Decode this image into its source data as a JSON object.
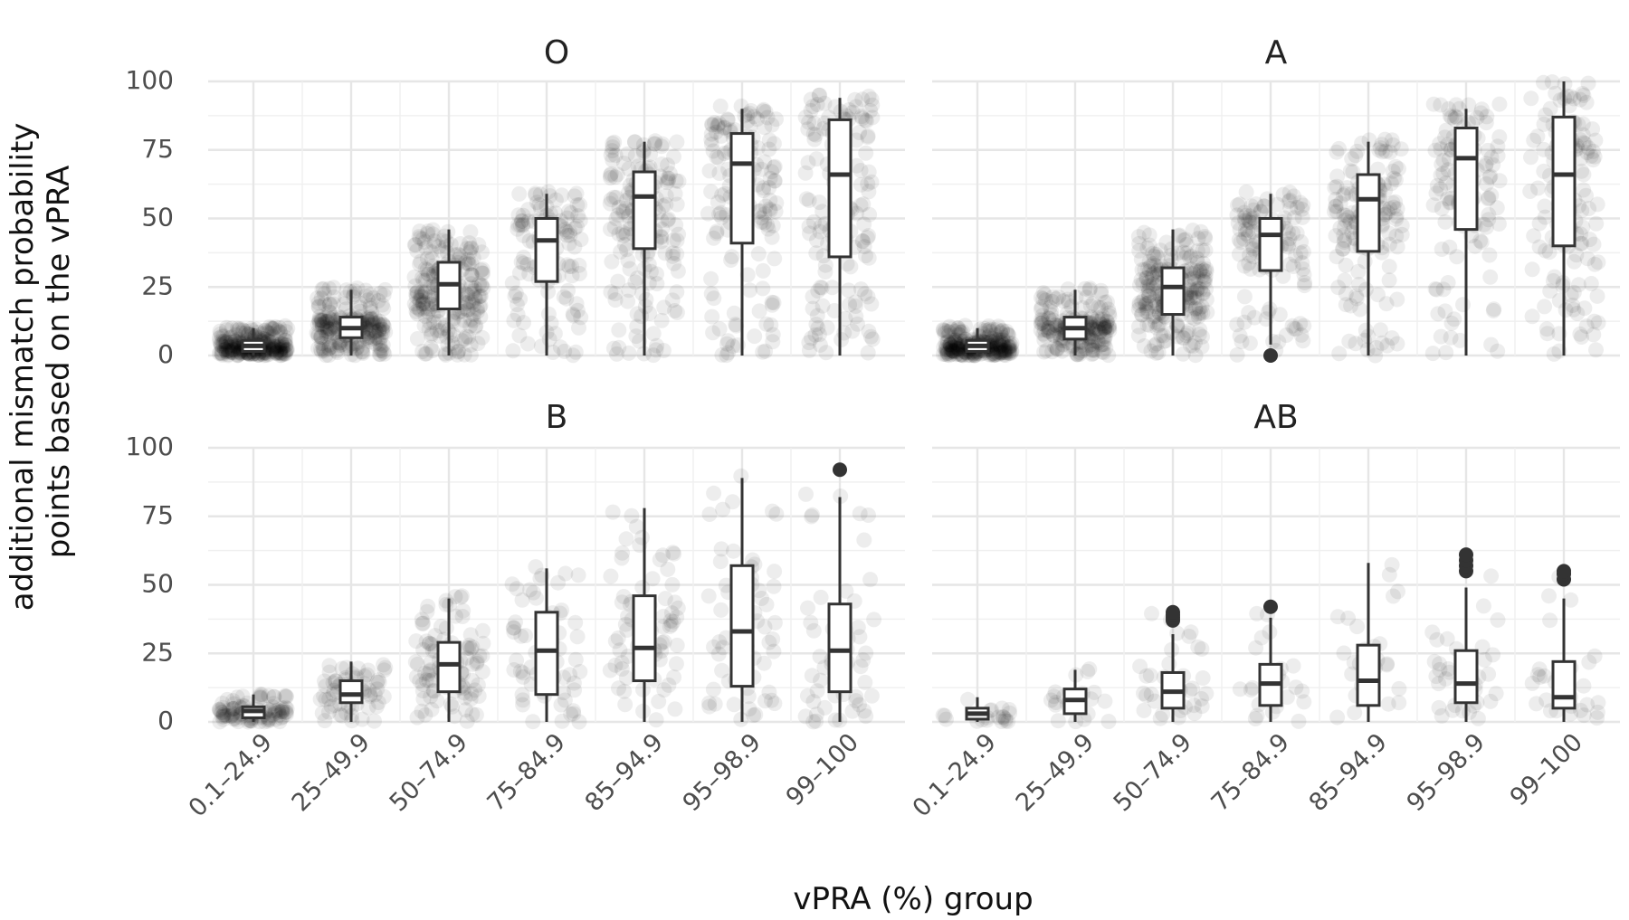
{
  "chart_data": {
    "type": "boxplot_jitter",
    "xlabel": "vPRA (%) group",
    "ylabel": "additional mismatch probability points based on the vPRA",
    "ylabel_lines": [
      "additional mismatch probability",
      "points based on the vPRA"
    ],
    "categories": [
      "0.1–24.9",
      "25–49.9",
      "50–74.9",
      "75–84.9",
      "85–94.9",
      "95–98.9",
      "99–100"
    ],
    "ylim": [
      0,
      100
    ],
    "yticks": [
      0,
      25,
      50,
      75,
      100
    ],
    "grid": true,
    "facets": [
      {
        "name": "O",
        "boxes": [
          {
            "min": 0,
            "q1": 1.5,
            "median": 3.5,
            "q3": 5.5,
            "max": 10,
            "outliers": [],
            "spread": [
              0,
              11
            ],
            "density": 260
          },
          {
            "min": 0,
            "q1": 6.5,
            "median": 10,
            "q3": 14,
            "max": 24,
            "outliers": [],
            "spread": [
              0,
              25
            ],
            "density": 230
          },
          {
            "min": 0,
            "q1": 17,
            "median": 26,
            "q3": 34,
            "max": 46,
            "outliers": [],
            "spread": [
              0,
              46
            ],
            "density": 230
          },
          {
            "min": 0,
            "q1": 27,
            "median": 42,
            "q3": 50,
            "max": 59,
            "outliers": [],
            "spread": [
              0,
              60
            ],
            "density": 120
          },
          {
            "min": 0,
            "q1": 39,
            "median": 58,
            "q3": 67,
            "max": 78,
            "outliers": [],
            "spread": [
              0,
              79
            ],
            "density": 170
          },
          {
            "min": 0,
            "q1": 41,
            "median": 70,
            "q3": 81,
            "max": 90,
            "outliers": [],
            "spread": [
              0,
              91
            ],
            "density": 150
          },
          {
            "min": 0,
            "q1": 36,
            "median": 66,
            "q3": 86,
            "max": 94,
            "outliers": [],
            "spread": [
              0,
              95
            ],
            "density": 150
          }
        ]
      },
      {
        "name": "A",
        "boxes": [
          {
            "min": 0,
            "q1": 1.5,
            "median": 3.5,
            "q3": 5.5,
            "max": 10,
            "outliers": [],
            "spread": [
              0,
              11
            ],
            "density": 260
          },
          {
            "min": 0,
            "q1": 6,
            "median": 10,
            "q3": 14,
            "max": 24,
            "outliers": [],
            "spread": [
              0,
              25
            ],
            "density": 200
          },
          {
            "min": 0,
            "q1": 15,
            "median": 25,
            "q3": 32,
            "max": 46,
            "outliers": [],
            "spread": [
              0,
              46
            ],
            "density": 230
          },
          {
            "min": 4,
            "q1": 31,
            "median": 44,
            "q3": 50,
            "max": 59,
            "outliers": [
              0
            ],
            "spread": [
              0,
              60
            ],
            "density": 120
          },
          {
            "min": 0,
            "q1": 38,
            "median": 57,
            "q3": 66,
            "max": 78,
            "outliers": [],
            "spread": [
              0,
              79
            ],
            "density": 150
          },
          {
            "min": 0,
            "q1": 46,
            "median": 72,
            "q3": 83,
            "max": 90,
            "outliers": [],
            "spread": [
              0,
              92
            ],
            "density": 130
          },
          {
            "min": 0,
            "q1": 40,
            "median": 66,
            "q3": 87,
            "max": 100,
            "outliers": [],
            "spread": [
              0,
              100
            ],
            "density": 140
          }
        ]
      },
      {
        "name": "B",
        "boxes": [
          {
            "min": 0,
            "q1": 1.5,
            "median": 4,
            "q3": 5.5,
            "max": 10,
            "outliers": [],
            "spread": [
              0,
              10
            ],
            "density": 100
          },
          {
            "min": 0,
            "q1": 7,
            "median": 10,
            "q3": 15,
            "max": 22,
            "outliers": [],
            "spread": [
              0,
              23
            ],
            "density": 70
          },
          {
            "min": 0,
            "q1": 11,
            "median": 21,
            "q3": 29,
            "max": 45,
            "outliers": [],
            "spread": [
              0,
              46
            ],
            "density": 100
          },
          {
            "min": 0,
            "q1": 10,
            "median": 26,
            "q3": 40,
            "max": 56,
            "outliers": [],
            "spread": [
              0,
              57
            ],
            "density": 60
          },
          {
            "min": 0,
            "q1": 15,
            "median": 27,
            "q3": 46,
            "max": 78,
            "outliers": [],
            "spread": [
              0,
              80
            ],
            "density": 80
          },
          {
            "min": 0,
            "q1": 13,
            "median": 33,
            "q3": 57,
            "max": 89,
            "outliers": [],
            "spread": [
              0,
              90
            ],
            "density": 60
          },
          {
            "min": 0,
            "q1": 11,
            "median": 26,
            "q3": 43,
            "max": 82,
            "outliers": [
              92
            ],
            "spread": [
              0,
              92
            ],
            "density": 60
          }
        ]
      },
      {
        "name": "AB",
        "boxes": [
          {
            "min": 0,
            "q1": 1,
            "median": 3,
            "q3": 5,
            "max": 9,
            "outliers": [],
            "spread": [
              0,
              10
            ],
            "density": 20
          },
          {
            "min": 0,
            "q1": 3,
            "median": 8,
            "q3": 12,
            "max": 19,
            "outliers": [],
            "spread": [
              0,
              20
            ],
            "density": 20
          },
          {
            "min": 0,
            "q1": 5,
            "median": 11,
            "q3": 18,
            "max": 32,
            "outliers": [
              37,
              38,
              39,
              40
            ],
            "spread": [
              0,
              40
            ],
            "density": 35
          },
          {
            "min": 0,
            "q1": 6,
            "median": 14,
            "q3": 21,
            "max": 38,
            "outliers": [
              42
            ],
            "spread": [
              0,
              42
            ],
            "density": 25
          },
          {
            "min": 0,
            "q1": 6,
            "median": 15,
            "q3": 28,
            "max": 58,
            "outliers": [],
            "spread": [
              0,
              58
            ],
            "density": 25
          },
          {
            "min": 0,
            "q1": 7,
            "median": 14,
            "q3": 26,
            "max": 49,
            "outliers": [
              55,
              57,
              59,
              61
            ],
            "spread": [
              0,
              61
            ],
            "density": 35
          },
          {
            "min": 0,
            "q1": 5,
            "median": 9,
            "q3": 22,
            "max": 45,
            "outliers": [
              52,
              54,
              55
            ],
            "spread": [
              0,
              55
            ],
            "density": 30
          }
        ]
      }
    ]
  }
}
